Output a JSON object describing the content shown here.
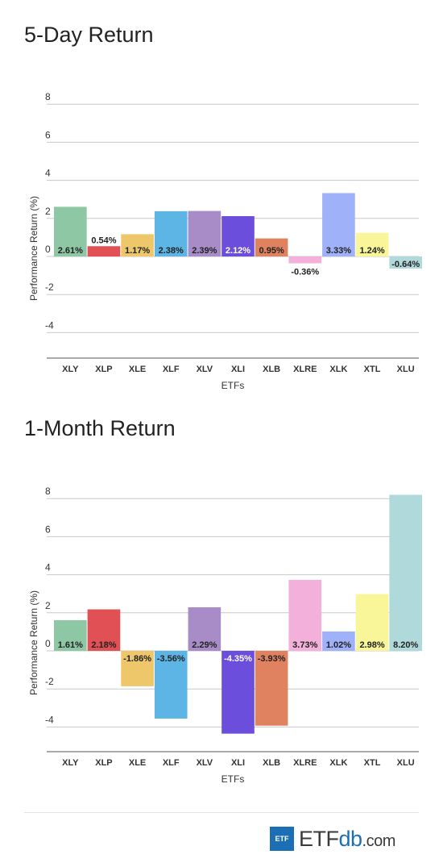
{
  "charts": [
    {
      "title": "5-Day Return",
      "xlabel": "ETFs",
      "ylabel": "Performance Return (%)"
    },
    {
      "title": "1-Month Return",
      "xlabel": "ETFs",
      "ylabel": "Performance Return (%)"
    }
  ],
  "chart_data": [
    {
      "type": "bar",
      "title": "5-Day Return",
      "xlabel": "ETFs",
      "ylabel": "Performance Return (%)",
      "ylim": [
        -5,
        8
      ],
      "yticks": [
        8,
        6,
        4,
        2,
        0,
        -2,
        -4
      ],
      "grid": true,
      "categories": [
        "XLY",
        "XLP",
        "XLE",
        "XLF",
        "XLV",
        "XLI",
        "XLB",
        "XLRE",
        "XLK",
        "XTL",
        "XLU"
      ],
      "values": [
        2.61,
        0.54,
        1.17,
        2.38,
        2.39,
        2.12,
        0.95,
        -0.36,
        3.33,
        1.24,
        -0.64
      ],
      "labels": [
        "2.61%",
        "0.54%",
        "1.17%",
        "2.38%",
        "2.39%",
        "2.12%",
        "0.95%",
        "-0.36%",
        "3.33%",
        "1.24%",
        "-0.64%"
      ],
      "colors": [
        "#8ec7a3",
        "#e05055",
        "#edc76a",
        "#5db5e6",
        "#a78cc8",
        "#6b4fdc",
        "#e0825f",
        "#f3b0db",
        "#9fb1f9",
        "#f8f698",
        "#b0d9dc"
      ]
    },
    {
      "type": "bar",
      "title": "1-Month Return",
      "xlabel": "ETFs",
      "ylabel": "Performance Return (%)",
      "ylim": [
        -5,
        9
      ],
      "yticks": [
        8,
        6,
        4,
        2,
        0,
        -2,
        -4
      ],
      "grid": true,
      "categories": [
        "XLY",
        "XLP",
        "XLE",
        "XLF",
        "XLV",
        "XLI",
        "XLB",
        "XLRE",
        "XLK",
        "XTL",
        "XLU"
      ],
      "values": [
        1.61,
        2.18,
        -1.86,
        -3.56,
        2.29,
        -4.35,
        -3.93,
        3.73,
        1.02,
        2.98,
        8.2
      ],
      "labels": [
        "1.61%",
        "2.18%",
        "-1.86%",
        "-3.56%",
        "2.29%",
        "-4.35%",
        "-3.93%",
        "3.73%",
        "1.02%",
        "2.98%",
        "8.20%"
      ],
      "colors": [
        "#8ec7a3",
        "#e05055",
        "#edc76a",
        "#5db5e6",
        "#a78cc8",
        "#6b4fdc",
        "#e0825f",
        "#f3b0db",
        "#9fb1f9",
        "#f8f698",
        "#b0d9dc"
      ]
    }
  ],
  "footer": {
    "logo_box": "ETF",
    "logo_main": "ETF",
    "logo_db": "db",
    "logo_com": ".com"
  }
}
